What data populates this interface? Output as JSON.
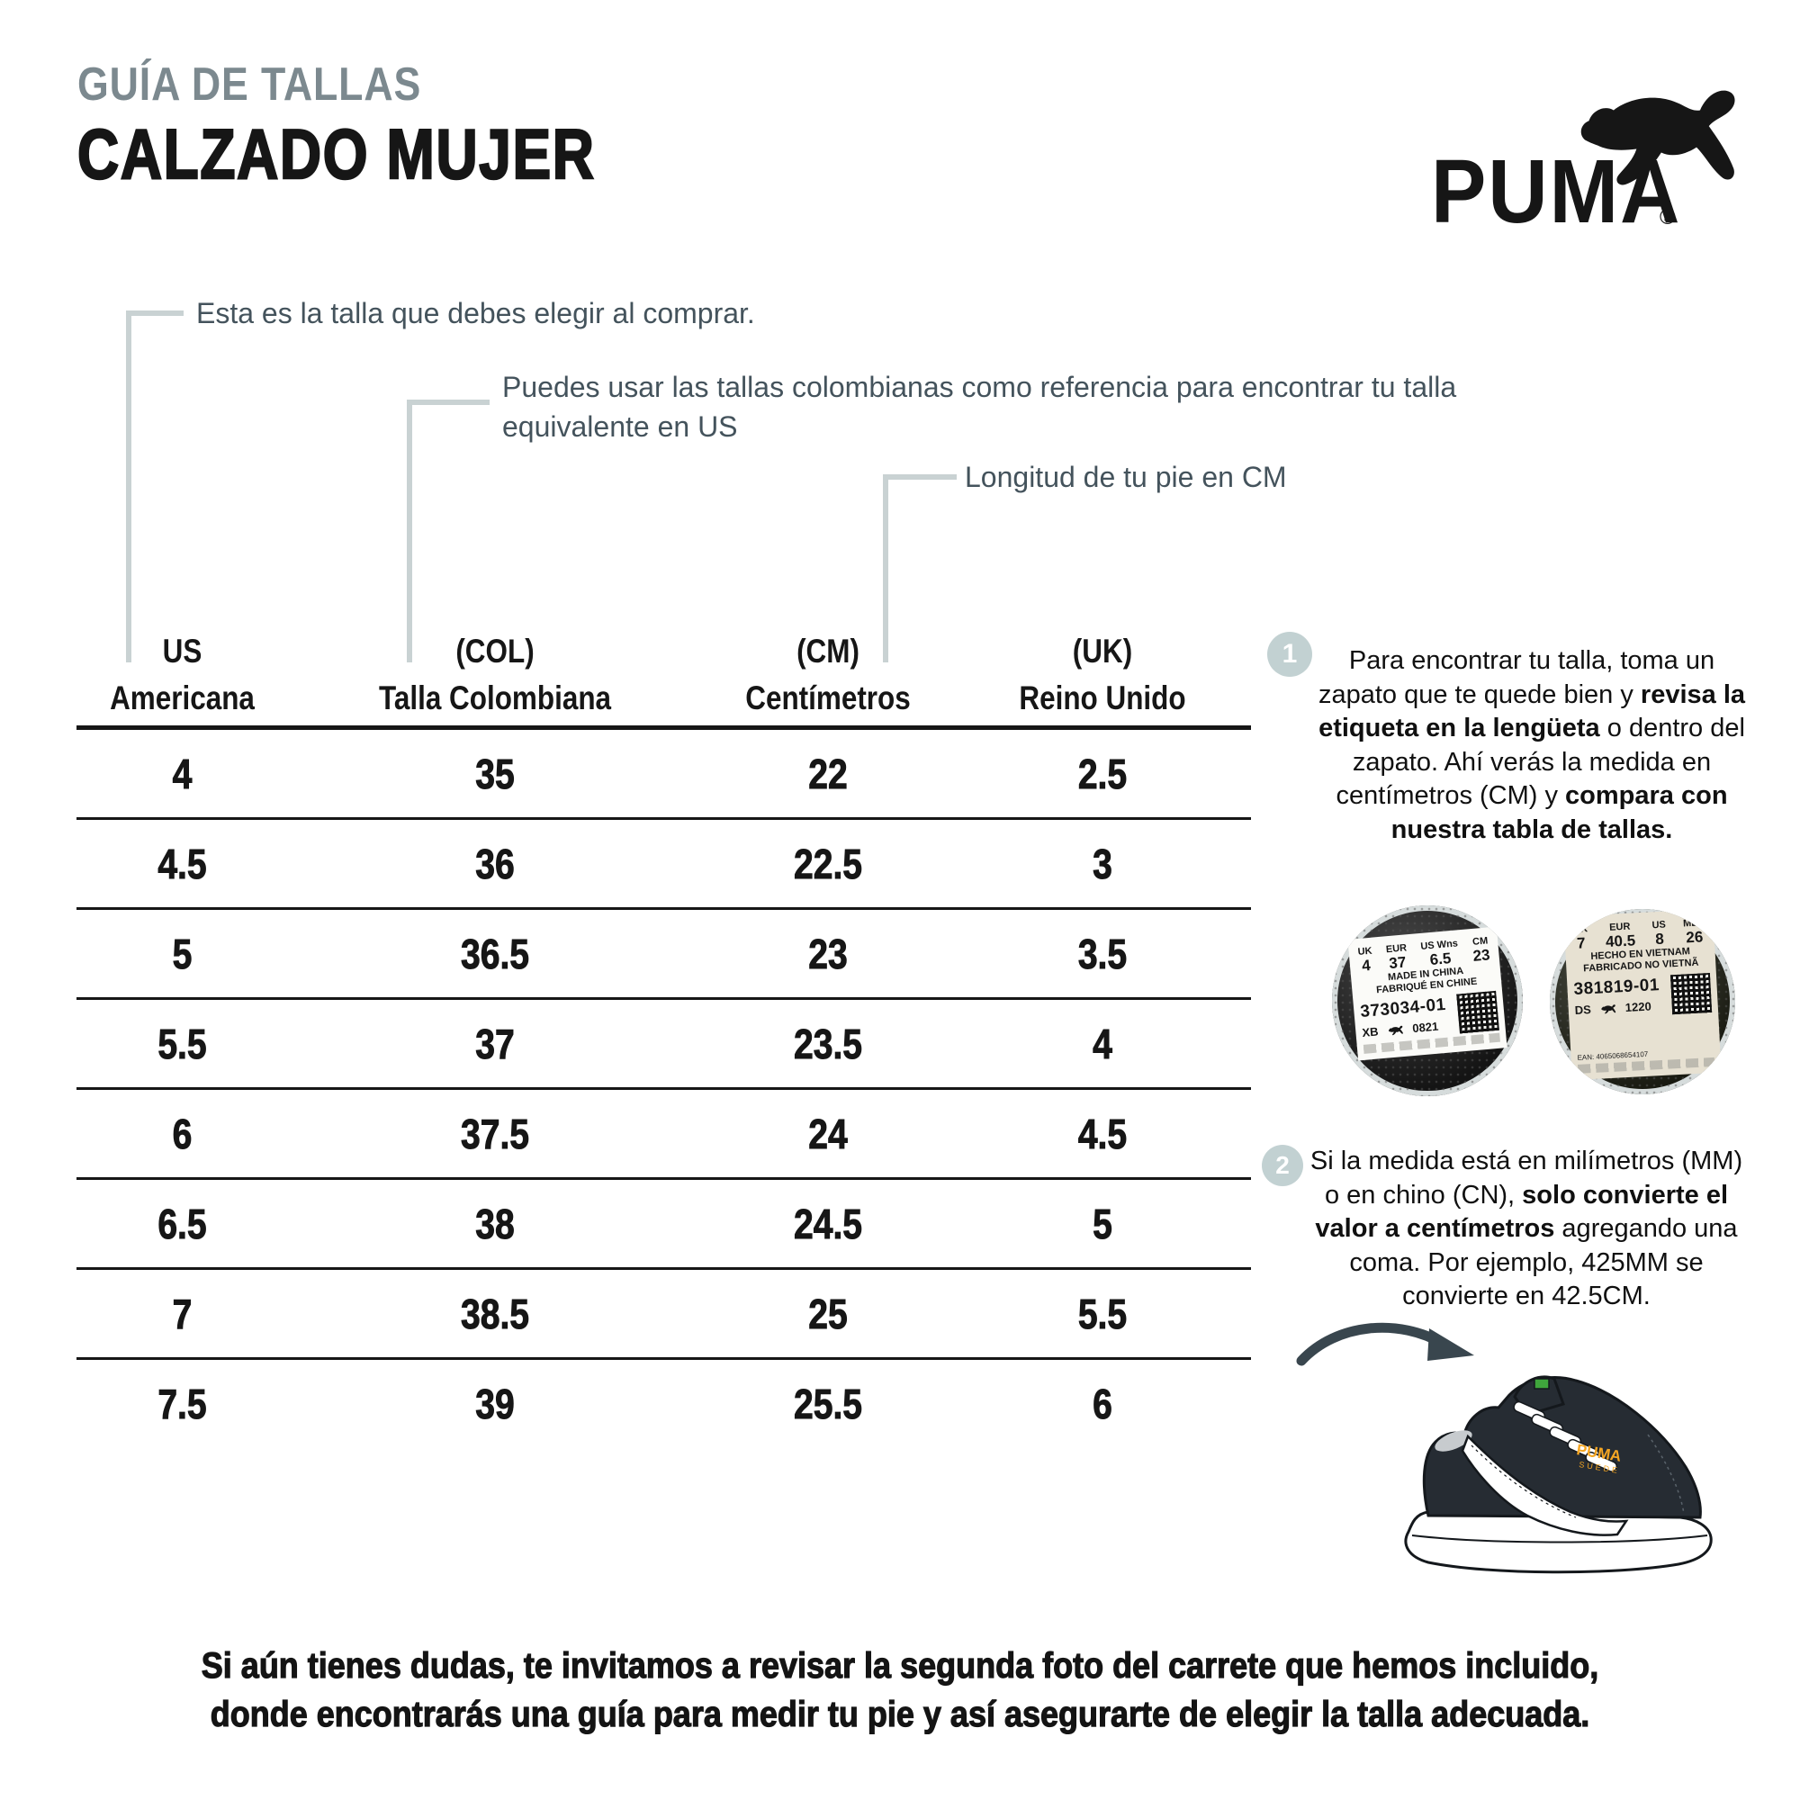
{
  "header": {
    "subtitle": "GUÍA DE TALLAS",
    "title": "CALZADO MUJER",
    "brand": "PUMA",
    "registered": "®"
  },
  "annotations": {
    "us": "Esta es la talla que debes elegir al comprar.",
    "col_line1": "Puedes usar las tallas colombianas como referencia para encontrar tu talla",
    "col_line2": "equivalente en US",
    "cm": "Longitud de tu pie en CM"
  },
  "table": {
    "columns": [
      {
        "code": "US",
        "name": "Americana"
      },
      {
        "code": "(COL)",
        "name": "Talla Colombiana"
      },
      {
        "code": "(CM)",
        "name": "Centímetros"
      },
      {
        "code": "(UK)",
        "name": "Reino Unido"
      }
    ],
    "rows": [
      [
        "4",
        "35",
        "22",
        "2.5"
      ],
      [
        "4.5",
        "36",
        "22.5",
        "3"
      ],
      [
        "5",
        "36.5",
        "23",
        "3.5"
      ],
      [
        "5.5",
        "37",
        "23.5",
        "4"
      ],
      [
        "6",
        "37.5",
        "24",
        "4.5"
      ],
      [
        "6.5",
        "38",
        "24.5",
        "5"
      ],
      [
        "7",
        "38.5",
        "25",
        "5.5"
      ],
      [
        "7.5",
        "39",
        "25.5",
        "6"
      ]
    ]
  },
  "steps": [
    {
      "number": "1",
      "segments": [
        {
          "t": "Para encontrar tu talla, toma un zapato que te quede bien y ",
          "b": false
        },
        {
          "t": "revisa la etiqueta en la lengüeta",
          "b": true
        },
        {
          "t": " o dentro del zapato. Ahí verás la medida en centímetros (CM) y ",
          "b": false
        },
        {
          "t": "compara con nuestra tabla de tallas.",
          "b": true
        }
      ]
    },
    {
      "number": "2",
      "segments": [
        {
          "t": "Si la medida está en milímetros (MM) o en chino (CN), ",
          "b": false
        },
        {
          "t": "solo convierte el valor a centímetros",
          "b": true
        },
        {
          "t": " agregando una coma. Por ejemplo, 425MM se convierte en 42.5CM.",
          "b": false
        }
      ]
    }
  ],
  "labels": [
    {
      "cols": [
        {
          "h": "UK",
          "v": "4"
        },
        {
          "h": "EUR",
          "v": "37"
        },
        {
          "h": "US Wns",
          "v": "6.5"
        },
        {
          "h": "CM",
          "v": "23"
        }
      ],
      "made1": "MADE IN CHINA",
      "made2": "FABRIQUÉ EN CHINE",
      "sku": "373034-01",
      "code_left": "XB",
      "code_right": "0821",
      "ean": ""
    },
    {
      "cols": [
        {
          "h": "UK",
          "v": "7"
        },
        {
          "h": "EUR",
          "v": "40.5"
        },
        {
          "h": "US",
          "v": "8"
        },
        {
          "h": "MEX",
          "v": "26"
        }
      ],
      "made1": "HECHO EN VIETNAM",
      "made2": "FABRICADO NO VIETNÃ",
      "sku": "381819-01",
      "code_left": "DS",
      "code_right": "1220",
      "ean": "EAN: 4065068654107"
    }
  ],
  "shoe": {
    "brand": "PUMA",
    "model": "SUEDE"
  },
  "footer": {
    "line1": "Si aún tienes dudas, te invitamos a revisar la segunda foto del carrete que hemos incluido,",
    "line2": "donde encontrarás una guía para medir tu pie y así asegurarte de elegir la talla adecuada."
  },
  "colors": {
    "subtitle_gray": "#7C898F",
    "annotation_slate": "#44535C",
    "connector_gray": "#C9D2D3",
    "badge_blue_gray": "#C2D1D2",
    "text_black": "#161616",
    "puma_orange": "#F5A623",
    "tag_green": "#3FA63C",
    "shoe_dark": "#262C33",
    "arrow_dark": "#39464E"
  }
}
